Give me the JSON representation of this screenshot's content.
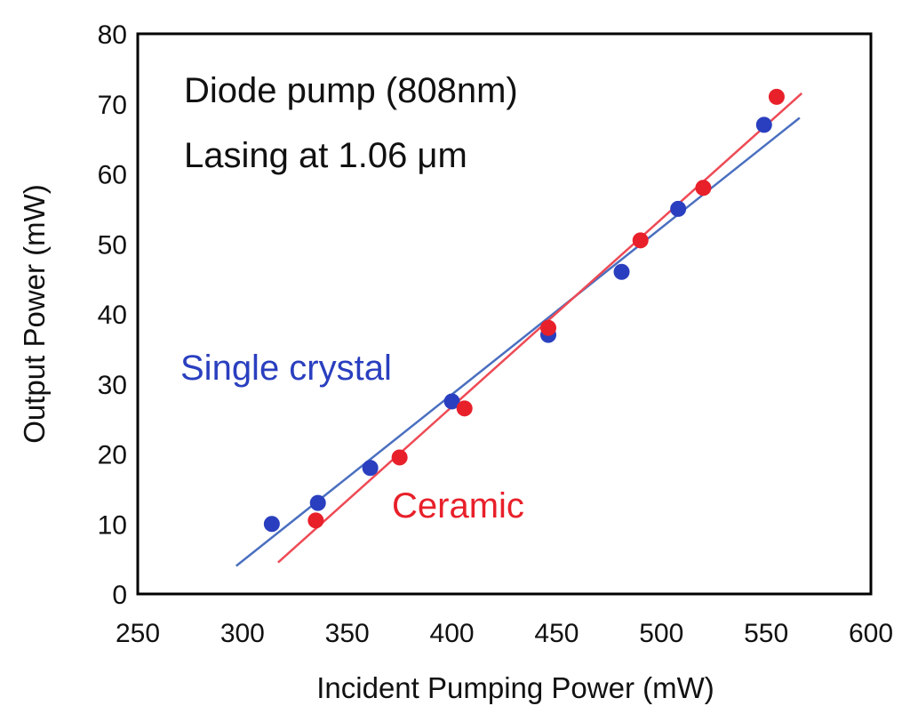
{
  "colors": {
    "single_crystal": "#2a3fbf",
    "ceramic": "#e8202a",
    "single_crystal_line": "#4a6fc0",
    "ceramic_line": "#ee4a55",
    "frame": "#000000"
  },
  "chart_data": {
    "type": "scatter",
    "title": "",
    "xlabel": "Incident Pumping Power (mW)",
    "ylabel": "Output Power (mW)",
    "xlim": [
      250,
      600
    ],
    "ylim": [
      0,
      80
    ],
    "xticks": [
      250,
      300,
      350,
      400,
      450,
      500,
      550,
      600
    ],
    "yticks": [
      0,
      10,
      20,
      30,
      40,
      50,
      60,
      70,
      80
    ],
    "annotations": [
      "Diode pump (808nm)",
      "Lasing at 1.06 μm"
    ],
    "series": [
      {
        "name": "Single crystal",
        "color": "#2a3fbf",
        "points": [
          {
            "x": 314,
            "y": 10
          },
          {
            "x": 336,
            "y": 13
          },
          {
            "x": 361,
            "y": 18
          },
          {
            "x": 400,
            "y": 27.5
          },
          {
            "x": 446,
            "y": 37
          },
          {
            "x": 481,
            "y": 46
          },
          {
            "x": 508,
            "y": 55
          },
          {
            "x": 549,
            "y": 67
          }
        ],
        "fit": [
          {
            "x": 297,
            "y": 4
          },
          {
            "x": 566,
            "y": 68
          }
        ]
      },
      {
        "name": "Ceramic",
        "color": "#e8202a",
        "points": [
          {
            "x": 335,
            "y": 10.5
          },
          {
            "x": 375,
            "y": 19.5
          },
          {
            "x": 406,
            "y": 26.5
          },
          {
            "x": 446,
            "y": 38
          },
          {
            "x": 490,
            "y": 50.5
          },
          {
            "x": 520,
            "y": 58
          },
          {
            "x": 555,
            "y": 71
          }
        ],
        "fit": [
          {
            "x": 317,
            "y": 4.5
          },
          {
            "x": 567,
            "y": 71.5
          }
        ]
      }
    ]
  }
}
